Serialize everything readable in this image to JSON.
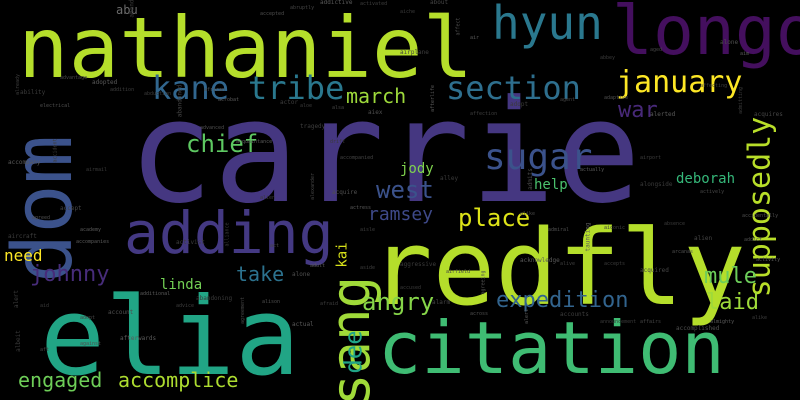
{
  "cloud": {
    "background": "#000000",
    "words": {
      "carrie": {
        "text": "carrie",
        "color": "#453781"
      },
      "nathaniel": {
        "text": "nathaniel",
        "color": "#b5de2b"
      },
      "longo": {
        "text": "longo",
        "color": "#440f5e"
      },
      "hyun": {
        "text": "hyun",
        "color": "#2a788e"
      },
      "redfly": {
        "text": "redfly",
        "color": "#b5de2b"
      },
      "elia": {
        "text": "elia",
        "color": "#21a585"
      },
      "citation": {
        "text": "citation",
        "color": "#3fbc73"
      },
      "dom": {
        "text": "dom",
        "color": "#3b528b"
      },
      "adding": {
        "text": "adding",
        "color": "#443983"
      },
      "sang": {
        "text": "sang",
        "color": "#a0da39"
      },
      "kane": {
        "text": "kane",
        "color": "#31668e"
      },
      "tribe": {
        "text": "tribe",
        "color": "#2a788e"
      },
      "section": {
        "text": "section",
        "color": "#2e6f8e"
      },
      "january": {
        "text": "january",
        "color": "#fde725"
      },
      "sugar": {
        "text": "sugar",
        "color": "#3b528b"
      },
      "supposedly": {
        "text": "supposedly",
        "color": "#b8de29"
      },
      "march": {
        "text": "march",
        "color": "#9dd93b"
      },
      "chief": {
        "text": "chief",
        "color": "#5ec962"
      },
      "war": {
        "text": "war",
        "color": "#482979"
      },
      "west": {
        "text": "west",
        "color": "#3b528b"
      },
      "deborah": {
        "text": "deborah",
        "color": "#35b779"
      },
      "ramsey": {
        "text": "ramsey",
        "color": "#3e4989"
      },
      "place": {
        "text": "place",
        "color": "#dde318"
      },
      "help": {
        "text": "help",
        "color": "#4ac16d"
      },
      "jody": {
        "text": "jody",
        "color": "#7fd34e"
      },
      "need": {
        "text": "need",
        "color": "#fde725"
      },
      "johnny": {
        "text": "johnny",
        "color": "#472c7a"
      },
      "linda": {
        "text": "linda",
        "color": "#73d055"
      },
      "take": {
        "text": "take",
        "color": "#2c728e"
      },
      "kai": {
        "text": "kai",
        "color": "#d8e219"
      },
      "angry": {
        "text": "angry",
        "color": "#86d549"
      },
      "expedition": {
        "text": "expedition",
        "color": "#32648e"
      },
      "mule": {
        "text": "mule",
        "color": "#6ccd5a"
      },
      "laid": {
        "text": "laid",
        "color": "#9fda3a"
      },
      "dee": {
        "text": "dee",
        "color": "#20a486"
      },
      "engaged": {
        "text": "engaged",
        "color": "#6ece58"
      },
      "accomplice": {
        "text": "accomplice",
        "color": "#addc30"
      },
      "abu": {
        "text": "abu",
        "color": "#6b6b6b"
      }
    },
    "small_words": [
      "abandon",
      "abruptly",
      "accepted",
      "addictive",
      "activated",
      "aiche",
      "about",
      "affect",
      "air",
      "airplane",
      "abbey",
      "aged",
      "alone",
      "aim",
      "already",
      "ability",
      "advantage",
      "electrical",
      "adopted",
      "addition",
      "abduction",
      "abandoned",
      "african",
      "acrobat",
      "actor",
      "aloe",
      "alsa",
      "aiex",
      "afterlife",
      "affection",
      "adopt",
      "agent",
      "adaptive",
      "alerted",
      "affecting",
      "admitting",
      "acquires",
      "advanced",
      "acquaintance",
      "tragedy",
      "drift",
      "accompanied",
      "admits",
      "actually",
      "airport",
      "alongside",
      "actively",
      "accidentally",
      "accompany",
      "accident",
      "airmail",
      "accept",
      "agreed",
      "academy",
      "aircraft",
      "alien",
      "alexander",
      "acquire",
      "actress",
      "aisle",
      "alley",
      "alike",
      "admiral",
      "taunting",
      "aiconic",
      "absence",
      "alien",
      "addict",
      "accompanies",
      "activist",
      "alliance",
      "act",
      "alone",
      "adult",
      "aside",
      "aggressive",
      "airfield",
      "agreeing",
      "acknowledge",
      "alive",
      "accepts",
      "acquired",
      "arcanas",
      "activity",
      "alert",
      "aid",
      "adopt",
      "account",
      "additional",
      "advice",
      "abandoning",
      "agreement",
      "alison",
      "actual",
      "afraid",
      "accused",
      "alarm",
      "across",
      "alert",
      "accounts",
      "announcement",
      "affairs",
      "accomplished",
      "almighty",
      "alike",
      "albeit",
      "aft",
      "against",
      "afterwards"
    ]
  }
}
